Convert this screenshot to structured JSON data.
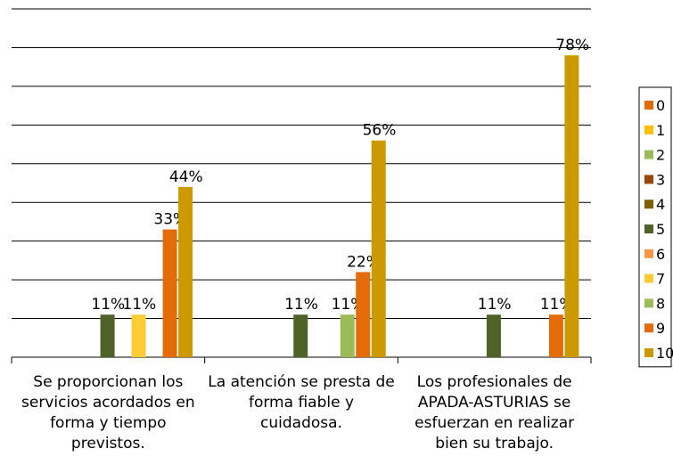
{
  "chart_data": {
    "type": "bar",
    "categories": [
      "Se proporcionan los servicios acordados en forma y tiempo previstos.",
      "La atención se presta de forma fiable y cuidadosa.",
      "Los profesionales de APADA-ASTURIAS se esfuerzan en realizar bien su trabajo."
    ],
    "series": [
      {
        "name": "0",
        "color": "#e36c09",
        "values": [
          0,
          0,
          0
        ],
        "value_labels": [
          null,
          null,
          null
        ]
      },
      {
        "name": "1",
        "color": "#ffc000",
        "values": [
          0,
          0,
          0
        ],
        "value_labels": [
          null,
          null,
          null
        ]
      },
      {
        "name": "2",
        "color": "#9bbb59",
        "values": [
          0,
          0,
          0
        ],
        "value_labels": [
          null,
          null,
          null
        ]
      },
      {
        "name": "3",
        "color": "#984807",
        "values": [
          0,
          0,
          0
        ],
        "value_labels": [
          null,
          null,
          null
        ]
      },
      {
        "name": "4",
        "color": "#7f6000",
        "values": [
          0,
          0,
          0
        ],
        "value_labels": [
          null,
          null,
          null
        ]
      },
      {
        "name": "5",
        "color": "#4f6228",
        "values": [
          11,
          11,
          11
        ],
        "value_labels": [
          "11%",
          "11%",
          "11%"
        ]
      },
      {
        "name": "6",
        "color": "#f79646",
        "values": [
          0,
          0,
          0
        ],
        "value_labels": [
          null,
          null,
          null
        ]
      },
      {
        "name": "7",
        "color": "#ffcc33",
        "values": [
          11,
          0,
          0
        ],
        "value_labels": [
          "11%",
          null,
          null
        ]
      },
      {
        "name": "8",
        "color": "#9bbb59",
        "values": [
          0,
          11,
          0
        ],
        "value_labels": [
          null,
          "11%",
          null
        ]
      },
      {
        "name": "9",
        "color": "#e36c09",
        "values": [
          33,
          22,
          11
        ],
        "value_labels": [
          "33%",
          "22%",
          "11%"
        ]
      },
      {
        "name": "10",
        "color": "#cc9900",
        "values": [
          44,
          56,
          78
        ],
        "value_labels": [
          "44%",
          "56%",
          "78%"
        ]
      }
    ],
    "ylim": [
      0,
      90
    ],
    "yticks": [
      0,
      10,
      20,
      30,
      40,
      50,
      60,
      70,
      80,
      90
    ],
    "grid": true,
    "legend": "right"
  }
}
